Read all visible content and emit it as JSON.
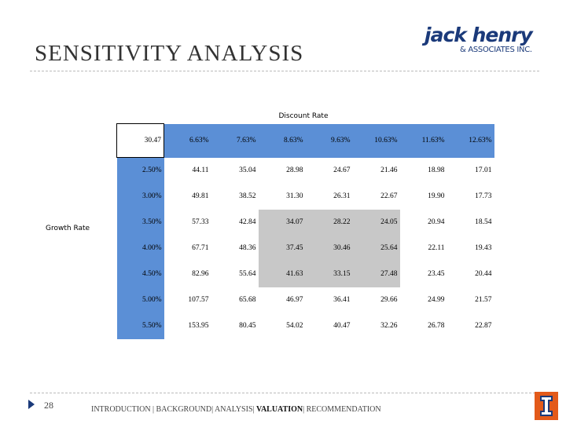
{
  "header": {
    "title": "SENSITIVITY ANALYSIS",
    "logo": {
      "name": "jack henry",
      "sub": "& ASSOCIATES INC."
    }
  },
  "table": {
    "column_label": "Discount Rate",
    "row_label": "Growth Rate",
    "corner": "30.47",
    "columns": [
      "6.63%",
      "7.63%",
      "8.63%",
      "9.63%",
      "10.63%",
      "11.63%",
      "12.63%"
    ],
    "rows": [
      {
        "label": "2.50%",
        "values": [
          "44.11",
          "35.04",
          "28.98",
          "24.67",
          "21.46",
          "18.98",
          "17.01"
        ]
      },
      {
        "label": "3.00%",
        "values": [
          "49.81",
          "38.52",
          "31.30",
          "26.31",
          "22.67",
          "19.90",
          "17.73"
        ]
      },
      {
        "label": "3.50%",
        "values": [
          "57.33",
          "42.84",
          "34.07",
          "28.22",
          "24.05",
          "20.94",
          "18.54"
        ]
      },
      {
        "label": "4.00%",
        "values": [
          "67.71",
          "48.36",
          "37.45",
          "30.46",
          "25.64",
          "22.11",
          "19.43"
        ]
      },
      {
        "label": "4.50%",
        "values": [
          "82.96",
          "55.64",
          "41.63",
          "33.15",
          "27.48",
          "23.45",
          "20.44"
        ]
      },
      {
        "label": "5.00%",
        "values": [
          "107.57",
          "65.68",
          "46.97",
          "36.41",
          "29.66",
          "24.99",
          "21.57"
        ]
      },
      {
        "label": "5.50%",
        "values": [
          "153.95",
          "80.45",
          "54.02",
          "40.47",
          "32.26",
          "26.78",
          "22.87"
        ]
      }
    ]
  },
  "footer": {
    "page": "28",
    "nav": [
      "INTRODUCTION | BACKGROUND| ANALYSIS| ",
      "VALUATION",
      "| RECOMMENDATION"
    ]
  }
}
